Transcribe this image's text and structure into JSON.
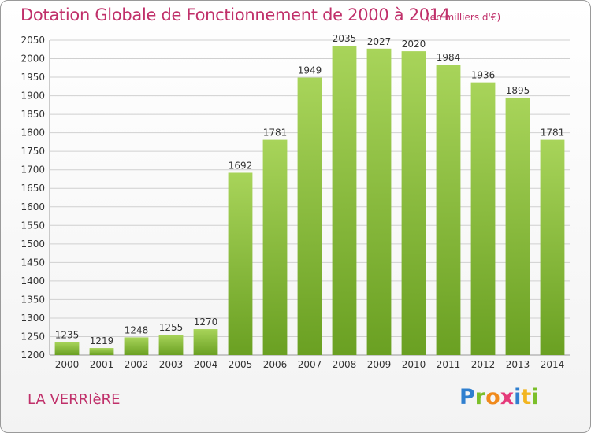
{
  "title": "Dotation Globale de Fonctionnement de 2000 à 2014",
  "subtitle": "(en milliers d'€)",
  "place_name": "LA VERRIèRE",
  "logo": {
    "letters": [
      "P",
      "r",
      "o",
      "x",
      "i",
      "t",
      "i"
    ],
    "colors": [
      "#2f7fcf",
      "#7bbf2a",
      "#f08a1c",
      "#e53a7a",
      "#2f7fcf",
      "#f2b520",
      "#7bbf2a"
    ]
  },
  "colors": {
    "bar_light": "#a8d45a",
    "bar_dark": "#6aa022",
    "title": "#c0306a",
    "grid": "#d0d0d0"
  },
  "chart_data": {
    "type": "bar",
    "title": "Dotation Globale de Fonctionnement de 2000 à 2014",
    "subtitle": "(en milliers d'€)",
    "xlabel": "",
    "ylabel": "",
    "categories": [
      "2000",
      "2001",
      "2002",
      "2003",
      "2004",
      "2005",
      "2006",
      "2007",
      "2008",
      "2009",
      "2010",
      "2011",
      "2012",
      "2013",
      "2014"
    ],
    "values": [
      1235,
      1219,
      1248,
      1255,
      1270,
      1692,
      1781,
      1949,
      2035,
      2027,
      2020,
      1984,
      1936,
      1895,
      1781
    ],
    "ylim": [
      1200,
      2050
    ],
    "yticks": [
      1200,
      1250,
      1300,
      1350,
      1400,
      1450,
      1500,
      1550,
      1600,
      1650,
      1700,
      1750,
      1800,
      1850,
      1900,
      1950,
      2000,
      2050
    ],
    "grid": true,
    "data_labels": true
  }
}
